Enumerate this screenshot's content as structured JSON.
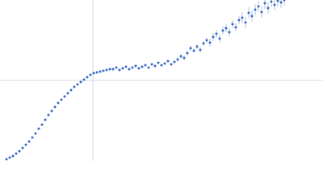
{
  "chart_data": {
    "type": "scatter",
    "color": "#3a6bc4",
    "grid": true,
    "xlim": [
      0,
      400
    ],
    "ylim": [
      0,
      200
    ],
    "xticks": [
      115
    ],
    "yticks": [
      100
    ],
    "x": [
      8,
      12,
      16,
      20,
      24,
      28,
      32,
      36,
      40,
      44,
      48,
      52,
      56,
      60,
      64,
      68,
      72,
      76,
      80,
      84,
      88,
      92,
      96,
      100,
      104,
      108,
      112,
      116,
      120,
      124,
      128,
      132,
      136,
      140,
      144,
      148,
      152,
      156,
      160,
      164,
      168,
      172,
      176,
      180,
      184,
      188,
      192,
      196,
      200,
      204,
      208,
      212,
      216,
      220,
      224,
      228,
      232,
      236,
      240,
      244,
      248,
      252,
      256,
      260,
      264,
      268,
      272,
      276,
      280,
      284,
      288,
      292,
      296,
      300,
      304,
      308,
      312,
      316,
      320,
      324,
      328,
      332,
      336,
      340,
      344,
      348,
      352
    ],
    "y": [
      2,
      4,
      6,
      9,
      12,
      16,
      20,
      24,
      29,
      34,
      40,
      45,
      51,
      57,
      62,
      67,
      72,
      76,
      80,
      84,
      88,
      92,
      95,
      98,
      101,
      104,
      107,
      109,
      110,
      111,
      112,
      113,
      114,
      114,
      116,
      113,
      115,
      117,
      114,
      116,
      118,
      115,
      117,
      119,
      116,
      120,
      118,
      122,
      119,
      121,
      124,
      120,
      123,
      126,
      130,
      128,
      134,
      140,
      137,
      142,
      138,
      146,
      150,
      147,
      154,
      158,
      152,
      162,
      165,
      160,
      170,
      166,
      175,
      178,
      172,
      184,
      180,
      188,
      192,
      185,
      196,
      190,
      198,
      194,
      199,
      197,
      200
    ],
    "errors": [
      0.5,
      0.5,
      0.5,
      0.5,
      0.5,
      0.5,
      0.5,
      0.5,
      0.5,
      0.5,
      0.5,
      0.5,
      0.5,
      0.5,
      0.5,
      0.5,
      0.5,
      0.5,
      0.5,
      0.5,
      0.5,
      0.5,
      0.5,
      0.5,
      0.5,
      0.5,
      0.5,
      0.5,
      0.5,
      0.5,
      0.5,
      0.5,
      0.5,
      1.5,
      1.5,
      1.5,
      1.5,
      1.5,
      1.5,
      1.5,
      1.5,
      1.5,
      1.5,
      1.5,
      1.5,
      1.5,
      1.5,
      1.5,
      1.5,
      1.5,
      1.5,
      1.5,
      1.5,
      3,
      3,
      3,
      3,
      3,
      3,
      3,
      3,
      3,
      3,
      5,
      5,
      5,
      5,
      5,
      5,
      5,
      5,
      5,
      5,
      7,
      7,
      7,
      7,
      7,
      7,
      7,
      7,
      7,
      7,
      7,
      7,
      7,
      7
    ]
  }
}
